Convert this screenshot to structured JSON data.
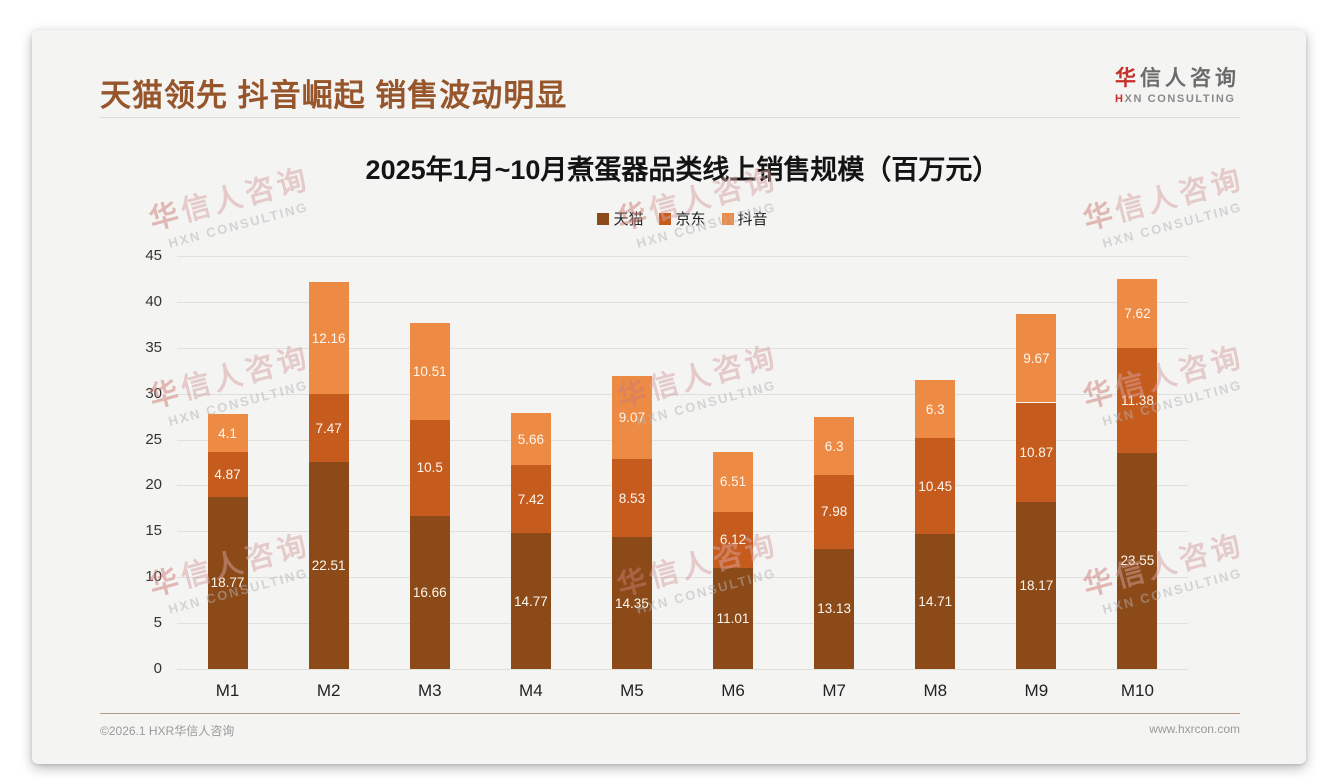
{
  "header": {
    "title": "天猫领先 抖音崛起 销售波动明显"
  },
  "logo": {
    "cn_first": "华",
    "cn_rest": "信人咨询",
    "en_first": "H",
    "en_rest": "XN CONSULTING"
  },
  "watermark": {
    "cn_first": "华",
    "cn_rest": "信人咨询",
    "en": "HXN CONSULTING"
  },
  "footer": {
    "copyright": "©2026.1 HXR华信人咨询",
    "website": "www.hxrcon.com"
  },
  "colors": {
    "title_brown": "#96552A",
    "logo_red": "#C62F27"
  },
  "chart_data": {
    "type": "bar",
    "stacked": true,
    "title": "2025年1月~10月煮蛋器品类线上销售规模（百万元）",
    "categories": [
      "M1",
      "M2",
      "M3",
      "M4",
      "M5",
      "M6",
      "M7",
      "M8",
      "M9",
      "M10"
    ],
    "series": [
      {
        "name": "天猫",
        "color": "#8B4A17",
        "values": [
          18.77,
          22.51,
          16.66,
          14.77,
          14.35,
          11.01,
          13.13,
          14.71,
          18.17,
          23.55
        ]
      },
      {
        "name": "京东",
        "color": "#C55C1E",
        "values": [
          4.87,
          7.47,
          10.5,
          7.42,
          8.53,
          6.12,
          7.98,
          10.45,
          10.87,
          11.38
        ]
      },
      {
        "name": "抖音",
        "color": "#ED8B44",
        "values": [
          4.1,
          12.16,
          10.51,
          5.66,
          9.07,
          6.51,
          6.3,
          6.3,
          9.67,
          7.62
        ]
      }
    ],
    "xlabel": "",
    "ylabel": "",
    "ylim": [
      0,
      45
    ],
    "ytick_step": 5,
    "grid": true,
    "legend_position": "top",
    "value_labels": "inside-white"
  }
}
